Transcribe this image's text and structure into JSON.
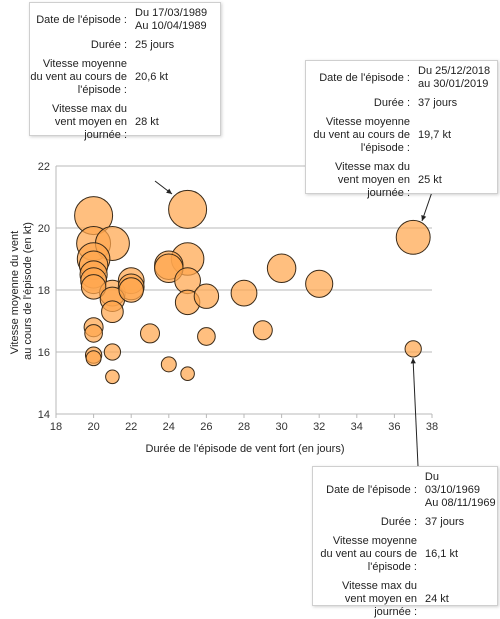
{
  "chart_data": {
    "type": "scatter",
    "xlabel": "Durée de l'épisode de vent fort (en jours)",
    "ylabel_lines": [
      "Vitesse moyenne du vent",
      "au cours de l'épisode (en kt)"
    ],
    "xlim": [
      18,
      38
    ],
    "ylim": [
      14,
      22
    ],
    "xticks": [
      18,
      20,
      22,
      24,
      26,
      28,
      30,
      32,
      34,
      36,
      38
    ],
    "yticks": [
      14,
      16,
      18,
      20,
      22
    ],
    "grid": "horizontal",
    "point_color": "#ffa64d",
    "points": [
      {
        "x": 20,
        "y": 20.4,
        "size": 28
      },
      {
        "x": 20,
        "y": 19.5,
        "size": 25
      },
      {
        "x": 20,
        "y": 19.0,
        "size": 24
      },
      {
        "x": 20,
        "y": 18.8,
        "size": 21
      },
      {
        "x": 20,
        "y": 18.5,
        "size": 20
      },
      {
        "x": 20,
        "y": 18.3,
        "size": 19
      },
      {
        "x": 20,
        "y": 18.1,
        "size": 18
      },
      {
        "x": 20,
        "y": 16.8,
        "size": 14
      },
      {
        "x": 20,
        "y": 16.6,
        "size": 13
      },
      {
        "x": 20,
        "y": 15.9,
        "size": 12
      },
      {
        "x": 20,
        "y": 15.8,
        "size": 11
      },
      {
        "x": 21,
        "y": 19.5,
        "size": 25
      },
      {
        "x": 21,
        "y": 17.9,
        "size": 19
      },
      {
        "x": 21,
        "y": 17.7,
        "size": 18
      },
      {
        "x": 21,
        "y": 17.3,
        "size": 16
      },
      {
        "x": 21,
        "y": 16.0,
        "size": 12
      },
      {
        "x": 21,
        "y": 15.2,
        "size": 10
      },
      {
        "x": 22,
        "y": 18.3,
        "size": 19
      },
      {
        "x": 22,
        "y": 18.1,
        "size": 19
      },
      {
        "x": 22,
        "y": 18.0,
        "size": 18
      },
      {
        "x": 23,
        "y": 16.6,
        "size": 14
      },
      {
        "x": 24,
        "y": 18.8,
        "size": 21
      },
      {
        "x": 24,
        "y": 18.7,
        "size": 21
      },
      {
        "x": 24,
        "y": 15.6,
        "size": 11
      },
      {
        "x": 25,
        "y": 20.6,
        "size": 28
      },
      {
        "x": 25,
        "y": 19.0,
        "size": 24
      },
      {
        "x": 25,
        "y": 18.3,
        "size": 19
      },
      {
        "x": 25,
        "y": 17.6,
        "size": 18
      },
      {
        "x": 25,
        "y": 15.3,
        "size": 10
      },
      {
        "x": 26,
        "y": 17.8,
        "size": 18
      },
      {
        "x": 26,
        "y": 16.5,
        "size": 13
      },
      {
        "x": 28,
        "y": 17.9,
        "size": 19
      },
      {
        "x": 29,
        "y": 16.7,
        "size": 14
      },
      {
        "x": 30,
        "y": 18.7,
        "size": 21
      },
      {
        "x": 32,
        "y": 18.2,
        "size": 20
      },
      {
        "x": 37,
        "y": 19.7,
        "size": 25
      },
      {
        "x": 37,
        "y": 16.1,
        "size": 12
      }
    ]
  },
  "tooltips": [
    {
      "date_label": "Date de l'épisode :",
      "date_value": [
        "Du 17/03/1989",
        "Au 10/04/1989"
      ],
      "duration_label": "Durée :",
      "duration_value": "25 jours",
      "mean_label": [
        "Vitesse moyenne",
        "du vent au cours de",
        "l'épisode :"
      ],
      "mean_value": "20,6 kt",
      "max_label": [
        "Vitesse max du",
        "vent moyen en",
        "journée :"
      ],
      "max_value": "28 kt"
    },
    {
      "date_label": "Date de l'épisode :",
      "date_value": [
        "Du 25/12/2018",
        "au 30/01/2019"
      ],
      "duration_label": "Durée :",
      "duration_value": "37 jours",
      "mean_label": [
        "Vitesse moyenne",
        "du vent au cours de",
        "l'épisode :"
      ],
      "mean_value": "19,7 kt",
      "max_label": [
        "Vitesse max du",
        "vent moyen en",
        "journée :"
      ],
      "max_value": "25 kt"
    },
    {
      "date_label": "Date de l'épisode :",
      "date_value": [
        "Du 03/10/1969",
        "Au 08/11/1969"
      ],
      "duration_label": "Durée :",
      "duration_value": "37 jours",
      "mean_label": [
        "Vitesse moyenne",
        "du vent au cours de",
        "l'épisode :"
      ],
      "mean_value": "16,1 kt",
      "max_label": [
        "Vitesse max du",
        "vent moyen en",
        "journée :"
      ],
      "max_value": "24 kt"
    }
  ]
}
